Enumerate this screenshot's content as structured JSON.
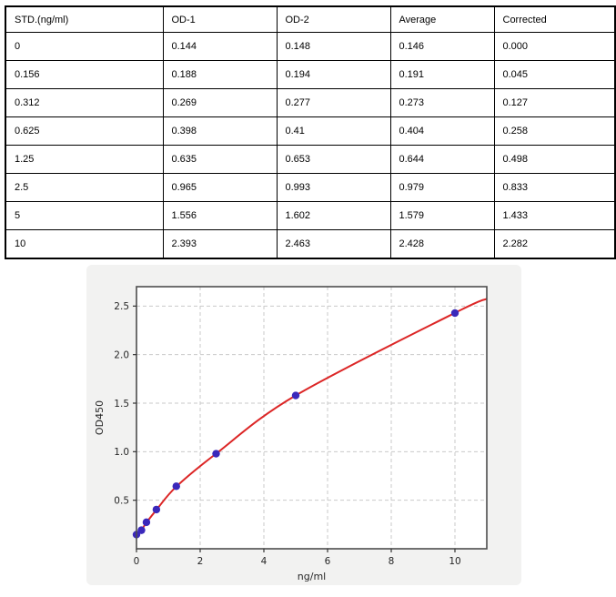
{
  "table": {
    "columns": [
      "STD.(ng/ml)",
      "OD-1",
      "OD-2",
      "Average",
      "Corrected"
    ],
    "rows": [
      [
        "0",
        "0.144",
        "0.148",
        "0.146",
        "0.000"
      ],
      [
        "0.156",
        "0.188",
        "0.194",
        "0.191",
        "0.045"
      ],
      [
        "0.312",
        "0.269",
        "0.277",
        "0.273",
        "0.127"
      ],
      [
        "0.625",
        "0.398",
        "0.41",
        "0.404",
        "0.258"
      ],
      [
        "1.25",
        "0.635",
        "0.653",
        "0.644",
        "0.498"
      ],
      [
        "2.5",
        "0.965",
        "0.993",
        "0.979",
        "0.833"
      ],
      [
        "5",
        "1.556",
        "1.602",
        "1.579",
        "1.433"
      ],
      [
        "10",
        "2.393",
        "2.463",
        "2.428",
        "2.282"
      ]
    ]
  },
  "chart_data": {
    "type": "scatter",
    "title": "",
    "xlabel": "ng/ml",
    "ylabel": "OD450",
    "x": [
      0,
      0.156,
      0.312,
      0.625,
      1.25,
      2.5,
      5,
      10
    ],
    "y": [
      0.146,
      0.191,
      0.273,
      0.404,
      0.644,
      0.979,
      1.579,
      2.428
    ],
    "fit_curve_points": [
      [
        0,
        0.12
      ],
      [
        0.156,
        0.19
      ],
      [
        0.312,
        0.27
      ],
      [
        0.625,
        0.4
      ],
      [
        1.25,
        0.64
      ],
      [
        2.5,
        0.98
      ],
      [
        5,
        1.58
      ],
      [
        10,
        2.43
      ],
      [
        11,
        2.575
      ]
    ],
    "xlim": [
      0,
      11
    ],
    "ylim": [
      0,
      2.7
    ],
    "xticks": [
      0,
      2,
      4,
      6,
      8,
      10
    ],
    "xtick_labels": [
      "0",
      "2",
      "4",
      "6",
      "8",
      "10"
    ],
    "yticks": [
      0.5,
      1.0,
      1.5,
      2.0,
      2.5
    ],
    "ytick_labels": [
      "0.5",
      "1.0",
      "1.5",
      "2.0",
      "2.5"
    ],
    "grid": true,
    "legend": "none",
    "colors": {
      "point": "#3a28bb",
      "curve": "#dc2626",
      "grid": "#c9c9c9",
      "spine": "#4d4d4d",
      "figure_bg": "#f2f2f1",
      "plot_bg": "#ffffff",
      "tick": "#333333"
    }
  }
}
